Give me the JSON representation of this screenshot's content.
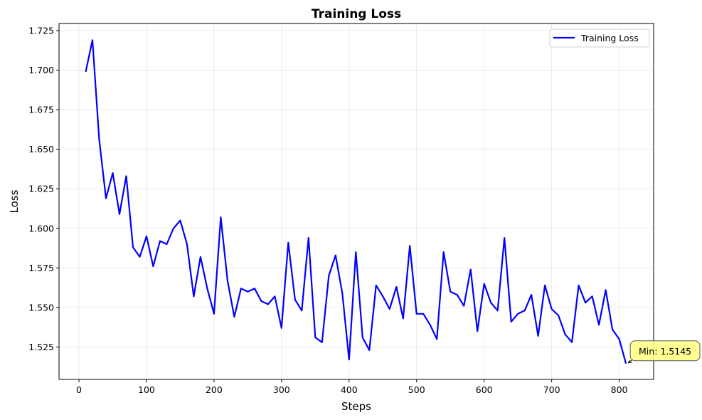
{
  "chart_data": {
    "type": "line",
    "title": "Training Loss",
    "xlabel": "Steps",
    "ylabel": "Loss",
    "xlim": [
      -29.5,
      851
    ],
    "ylim": [
      1.5045,
      1.7295
    ],
    "xticks": [
      0,
      100,
      200,
      300,
      400,
      500,
      600,
      700,
      800
    ],
    "yticks": [
      1.525,
      1.55,
      1.575,
      1.6,
      1.625,
      1.65,
      1.675,
      1.7,
      1.725
    ],
    "ytick_labels": [
      "1.525",
      "1.550",
      "1.575",
      "1.600",
      "1.625",
      "1.650",
      "1.675",
      "1.700",
      "1.725"
    ],
    "grid": true,
    "legend_position": "upper right",
    "series": [
      {
        "name": "Training Loss",
        "color": "#0000ff",
        "x": [
          10,
          20,
          30,
          40,
          50,
          60,
          70,
          80,
          90,
          100,
          110,
          120,
          130,
          140,
          150,
          160,
          170,
          180,
          190,
          200,
          210,
          220,
          230,
          240,
          250,
          260,
          270,
          280,
          290,
          300,
          310,
          320,
          330,
          340,
          350,
          360,
          370,
          380,
          390,
          400,
          410,
          420,
          430,
          440,
          450,
          460,
          470,
          480,
          490,
          500,
          510,
          520,
          530,
          540,
          550,
          560,
          570,
          580,
          590,
          600,
          610,
          620,
          630,
          640,
          650,
          660,
          670,
          680,
          690,
          700,
          710,
          720,
          730,
          740,
          750,
          760,
          770,
          780,
          790,
          800,
          810
        ],
        "values": [
          1.699,
          1.719,
          1.656,
          1.619,
          1.635,
          1.609,
          1.633,
          1.588,
          1.582,
          1.595,
          1.576,
          1.592,
          1.59,
          1.6,
          1.605,
          1.59,
          1.557,
          1.582,
          1.562,
          1.546,
          1.607,
          1.567,
          1.544,
          1.562,
          1.56,
          1.562,
          1.554,
          1.552,
          1.557,
          1.537,
          1.591,
          1.555,
          1.548,
          1.594,
          1.531,
          1.528,
          1.57,
          1.583,
          1.559,
          1.517,
          1.585,
          1.531,
          1.523,
          1.564,
          1.557,
          1.549,
          1.563,
          1.543,
          1.589,
          1.546,
          1.546,
          1.539,
          1.53,
          1.585,
          1.56,
          1.558,
          1.551,
          1.574,
          1.535,
          1.565,
          1.553,
          1.548,
          1.594,
          1.541,
          1.546,
          1.548,
          1.558,
          1.532,
          1.564,
          1.549,
          1.545,
          1.533,
          1.528,
          1.564,
          1.553,
          1.557,
          1.539,
          1.561,
          1.536,
          1.53,
          1.5145
        ]
      }
    ],
    "annotations": [
      {
        "text": "Min: 1.5145",
        "x": 810,
        "y": 1.5145,
        "box_color": "#ffff80",
        "arrow": true
      }
    ]
  }
}
